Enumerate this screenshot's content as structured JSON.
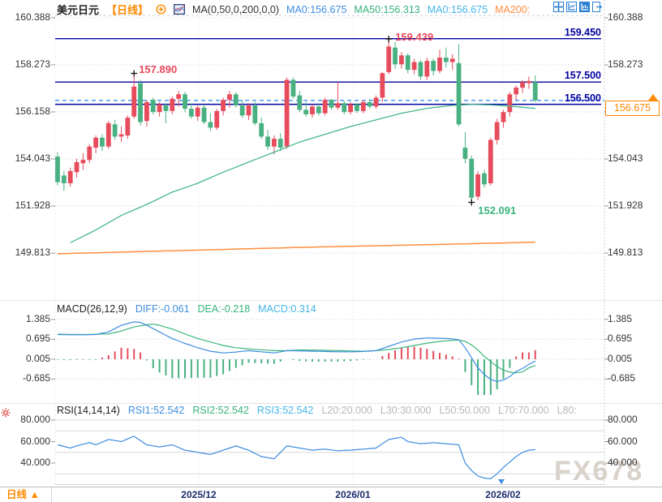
{
  "header": {
    "symbol": "美元日元",
    "period": "【日线】",
    "ma_formula": "MA(0,50,0,200,0,0)",
    "ma0_a": "MA0:156.675",
    "ma50": "MA50:156.313",
    "ma0_b": "MA0:156.675",
    "ma200": "MA200:"
  },
  "toolbar": {
    "icons": [
      "pan-crosshair",
      "axis-scale",
      "axis-style",
      "export-window"
    ]
  },
  "price_panel": {
    "left_axis": [
      "160.388",
      "158.273",
      "156.158",
      "154.043",
      "151.928",
      "149.813"
    ],
    "right_axis": [
      "160.388",
      "158.273",
      "154.043",
      "151.928",
      "149.813"
    ],
    "hline_labels": [
      "159.450",
      "157.500",
      "156.500"
    ],
    "current_price": "156.675",
    "ann_high": "159.439",
    "ann_first_high": "157.890",
    "ann_low": "152.091"
  },
  "macd_panel": {
    "title": "MACD(26,12,9)",
    "diff_label": "DIFF:-0.061",
    "dea_label": "DEA:-0.218",
    "macd_label": "MACD:0.314",
    "axis": [
      "1.385",
      "0.695",
      "0.005",
      "-0.685"
    ]
  },
  "rsi_panel": {
    "title": "RSI(14,14,14)",
    "rsi1_label": "RSI1:52.542",
    "rsi2_label": "RSI2:52.542",
    "rsi3_label": "RSI3:52.542",
    "levels": [
      "L20:20.000",
      "L30:30.000",
      "L50:50.000",
      "L70:70.000",
      "L80:"
    ],
    "axis": [
      "80.000",
      "60.000",
      "40.000"
    ]
  },
  "bottom": {
    "period": "日线 ▲",
    "dates": [
      "2025/12",
      "2026/01",
      "2026/02"
    ]
  },
  "watermark": "FX678",
  "colors": {
    "up": "#e64c5c",
    "down": "#49b181",
    "navy_line": "#0000a0",
    "dashed_current": "#3b96f2",
    "ma50": "#45b78c",
    "ma200": "#ff8e3e",
    "diff": "#3d8de0",
    "dea": "#3cb57c",
    "accent_orange": "#ff8800",
    "grid": "#d9dde8"
  },
  "chart_data": {
    "type": "candlestick",
    "title": "美元日元 日线 (USD/JPY daily)",
    "x_dates": [
      "2025/12",
      "2026/01",
      "2026/02"
    ],
    "price_axis_ticks": [
      160.388,
      158.273,
      156.158,
      154.043,
      151.928,
      149.813
    ],
    "hlines": [
      159.45,
      157.5,
      156.5
    ],
    "current_price": 156.675,
    "annotations": {
      "high": {
        "index": 52,
        "price": 159.439
      },
      "first_high": {
        "index": 12,
        "price": 157.89
      },
      "low": {
        "index": 65,
        "price": 152.091
      }
    },
    "candles": [
      [
        154.15,
        154.35,
        152.85,
        153.0
      ],
      [
        153.3,
        153.5,
        152.6,
        152.95
      ],
      [
        152.95,
        153.65,
        152.8,
        153.5
      ],
      [
        153.45,
        154.05,
        153.2,
        153.9
      ],
      [
        153.85,
        154.3,
        153.55,
        154.0
      ],
      [
        154.0,
        154.7,
        153.85,
        154.6
      ],
      [
        154.55,
        155.1,
        154.3,
        155.0
      ],
      [
        155.0,
        155.15,
        154.4,
        154.6
      ],
      [
        154.6,
        155.75,
        154.5,
        155.65
      ],
      [
        155.6,
        155.8,
        154.9,
        155.05
      ],
      [
        155.05,
        155.5,
        154.8,
        155.15
      ],
      [
        155.1,
        156.0,
        154.95,
        155.9
      ],
      [
        155.95,
        157.89,
        155.85,
        157.3
      ],
      [
        157.45,
        157.6,
        155.55,
        155.7
      ],
      [
        155.75,
        156.7,
        155.5,
        156.6
      ],
      [
        156.7,
        156.8,
        156.05,
        156.15
      ],
      [
        156.15,
        156.6,
        155.95,
        156.5
      ],
      [
        156.45,
        156.55,
        155.65,
        156.2
      ],
      [
        156.2,
        156.85,
        156.05,
        156.75
      ],
      [
        156.75,
        157.1,
        156.4,
        156.95
      ],
      [
        156.95,
        157.05,
        156.15,
        156.3
      ],
      [
        156.3,
        156.55,
        155.85,
        155.95
      ],
      [
        155.95,
        156.45,
        155.75,
        156.35
      ],
      [
        156.35,
        156.5,
        155.6,
        155.7
      ],
      [
        155.7,
        156.1,
        155.3,
        155.45
      ],
      [
        155.45,
        156.3,
        155.35,
        156.2
      ],
      [
        156.2,
        156.8,
        156.0,
        156.7
      ],
      [
        156.7,
        157.1,
        156.35,
        156.95
      ],
      [
        156.95,
        157.05,
        156.35,
        156.45
      ],
      [
        156.45,
        156.7,
        155.9,
        156.0
      ],
      [
        156.0,
        156.55,
        155.8,
        156.45
      ],
      [
        156.45,
        156.6,
        155.55,
        155.65
      ],
      [
        155.65,
        155.9,
        154.95,
        155.05
      ],
      [
        155.05,
        155.35,
        154.45,
        154.6
      ],
      [
        154.6,
        155.1,
        154.25,
        154.95
      ],
      [
        154.95,
        155.2,
        154.4,
        154.55
      ],
      [
        154.6,
        157.7,
        154.5,
        157.6
      ],
      [
        157.6,
        157.7,
        156.75,
        156.85
      ],
      [
        156.9,
        157.1,
        156.15,
        156.25
      ],
      [
        156.25,
        156.6,
        155.95,
        156.05
      ],
      [
        156.05,
        156.5,
        155.9,
        156.4
      ],
      [
        156.4,
        156.55,
        156.0,
        156.1
      ],
      [
        156.1,
        156.8,
        156.0,
        156.7
      ],
      [
        156.7,
        156.75,
        156.25,
        156.35
      ],
      [
        156.35,
        157.5,
        156.25,
        156.55
      ],
      [
        156.55,
        156.65,
        156.05,
        156.15
      ],
      [
        156.15,
        156.6,
        156.05,
        156.5
      ],
      [
        156.5,
        156.55,
        156.1,
        156.2
      ],
      [
        156.2,
        156.7,
        156.1,
        156.6
      ],
      [
        156.6,
        156.75,
        156.3,
        156.4
      ],
      [
        156.4,
        156.9,
        156.3,
        156.8
      ],
      [
        156.8,
        157.95,
        156.6,
        157.9
      ],
      [
        157.95,
        159.439,
        157.85,
        159.1
      ],
      [
        159.05,
        159.3,
        158.1,
        158.3
      ],
      [
        158.3,
        158.85,
        158.1,
        158.7
      ],
      [
        158.7,
        158.8,
        157.9,
        158.05
      ],
      [
        158.05,
        158.55,
        157.85,
        158.4
      ],
      [
        158.4,
        158.5,
        157.6,
        157.75
      ],
      [
        157.75,
        158.6,
        157.6,
        158.45
      ],
      [
        158.45,
        158.55,
        157.8,
        158.0
      ],
      [
        158.0,
        158.95,
        157.9,
        158.6
      ],
      [
        158.6,
        159.05,
        158.15,
        158.4
      ],
      [
        158.4,
        158.75,
        158.05,
        158.55
      ],
      [
        158.35,
        159.2,
        155.5,
        155.6
      ],
      [
        154.55,
        155.25,
        153.85,
        154.05
      ],
      [
        154.05,
        154.2,
        152.091,
        152.3
      ],
      [
        152.35,
        153.5,
        152.2,
        153.35
      ],
      [
        153.4,
        153.55,
        152.75,
        152.9
      ],
      [
        152.95,
        155.0,
        152.85,
        154.9
      ],
      [
        154.9,
        155.85,
        154.7,
        155.7
      ],
      [
        155.7,
        156.25,
        155.45,
        156.15
      ],
      [
        156.15,
        157.05,
        155.95,
        156.95
      ],
      [
        156.95,
        157.35,
        156.7,
        157.25
      ],
      [
        157.25,
        157.6,
        157.0,
        157.5
      ],
      [
        157.45,
        157.75,
        157.2,
        157.55
      ],
      [
        157.5,
        157.8,
        156.6,
        156.675
      ]
    ],
    "ma50_points": [
      [
        2,
        150.28
      ],
      [
        6,
        150.85
      ],
      [
        10,
        151.5
      ],
      [
        14,
        152.0
      ],
      [
        18,
        152.55
      ],
      [
        22,
        152.95
      ],
      [
        26,
        153.45
      ],
      [
        30,
        153.9
      ],
      [
        34,
        154.35
      ],
      [
        38,
        154.8
      ],
      [
        42,
        155.15
      ],
      [
        46,
        155.5
      ],
      [
        50,
        155.8
      ],
      [
        54,
        156.1
      ],
      [
        58,
        156.32
      ],
      [
        62,
        156.45
      ],
      [
        65,
        156.5
      ],
      [
        68,
        156.47
      ],
      [
        71,
        156.42
      ],
      [
        75,
        156.313
      ]
    ],
    "ma200_points": [
      [
        0,
        149.78
      ],
      [
        20,
        149.93
      ],
      [
        40,
        150.08
      ],
      [
        60,
        150.2
      ],
      [
        75,
        150.3
      ]
    ],
    "macd": {
      "params": [
        26,
        12,
        9
      ],
      "diff_end": -0.061,
      "dea_end": -0.218,
      "macd_end": 0.314,
      "hist_formula": "2*(diff-dea)",
      "axis_ticks": [
        1.385,
        0.695,
        0.005,
        -0.685
      ],
      "diff_points": [
        [
          0,
          0.86
        ],
        [
          2,
          0.85
        ],
        [
          4,
          0.85
        ],
        [
          6,
          0.86
        ],
        [
          8,
          0.95
        ],
        [
          10,
          1.18
        ],
        [
          12,
          1.3
        ],
        [
          13,
          1.28
        ],
        [
          14,
          1.18
        ],
        [
          16,
          0.95
        ],
        [
          18,
          0.72
        ],
        [
          20,
          0.55
        ],
        [
          22,
          0.4
        ],
        [
          24,
          0.28
        ],
        [
          26,
          0.22
        ],
        [
          28,
          0.25
        ],
        [
          30,
          0.3
        ],
        [
          32,
          0.26
        ],
        [
          34,
          0.22
        ],
        [
          36,
          0.3
        ],
        [
          38,
          0.29
        ],
        [
          40,
          0.28
        ],
        [
          42,
          0.27
        ],
        [
          44,
          0.26
        ],
        [
          46,
          0.26
        ],
        [
          48,
          0.27
        ],
        [
          50,
          0.3
        ],
        [
          52,
          0.45
        ],
        [
          54,
          0.6
        ],
        [
          56,
          0.7
        ],
        [
          58,
          0.74
        ],
        [
          60,
          0.73
        ],
        [
          62,
          0.71
        ],
        [
          63,
          0.68
        ],
        [
          64,
          0.4
        ],
        [
          65,
          0.05
        ],
        [
          66,
          -0.3
        ],
        [
          67,
          -0.52
        ],
        [
          68,
          -0.7
        ],
        [
          69,
          -0.77
        ],
        [
          70,
          -0.72
        ],
        [
          71,
          -0.6
        ],
        [
          72,
          -0.42
        ],
        [
          73,
          -0.32
        ],
        [
          74,
          -0.18
        ],
        [
          75,
          -0.061
        ]
      ],
      "dea_points": [
        [
          0,
          0.87
        ],
        [
          4,
          0.86
        ],
        [
          8,
          0.88
        ],
        [
          10,
          0.98
        ],
        [
          12,
          1.12
        ],
        [
          14,
          1.2
        ],
        [
          15,
          1.22
        ],
        [
          16,
          1.18
        ],
        [
          18,
          1.05
        ],
        [
          20,
          0.88
        ],
        [
          22,
          0.72
        ],
        [
          24,
          0.6
        ],
        [
          26,
          0.48
        ],
        [
          28,
          0.4
        ],
        [
          30,
          0.36
        ],
        [
          32,
          0.33
        ],
        [
          34,
          0.3
        ],
        [
          36,
          0.3
        ],
        [
          38,
          0.32
        ],
        [
          40,
          0.32
        ],
        [
          42,
          0.31
        ],
        [
          44,
          0.3
        ],
        [
          46,
          0.29
        ],
        [
          48,
          0.28
        ],
        [
          50,
          0.3
        ],
        [
          52,
          0.34
        ],
        [
          54,
          0.4
        ],
        [
          56,
          0.48
        ],
        [
          58,
          0.56
        ],
        [
          60,
          0.62
        ],
        [
          62,
          0.66
        ],
        [
          63,
          0.67
        ],
        [
          64,
          0.62
        ],
        [
          65,
          0.5
        ],
        [
          66,
          0.32
        ],
        [
          67,
          0.1
        ],
        [
          68,
          -0.08
        ],
        [
          69,
          -0.25
        ],
        [
          70,
          -0.38
        ],
        [
          71,
          -0.45
        ],
        [
          72,
          -0.47
        ],
        [
          73,
          -0.44
        ],
        [
          74,
          -0.3
        ],
        [
          75,
          -0.218
        ]
      ]
    },
    "rsi": {
      "params": [
        14,
        14,
        14
      ],
      "end_value": 52.542,
      "levels": [
        20,
        30,
        50,
        70,
        80
      ],
      "axis_ticks": [
        80,
        60,
        40
      ],
      "points": [
        [
          0,
          57
        ],
        [
          2,
          54
        ],
        [
          3,
          56
        ],
        [
          5,
          59
        ],
        [
          6,
          57
        ],
        [
          8,
          62
        ],
        [
          10,
          60
        ],
        [
          12,
          65
        ],
        [
          14,
          57
        ],
        [
          16,
          55
        ],
        [
          18,
          57
        ],
        [
          20,
          52
        ],
        [
          22,
          50
        ],
        [
          24,
          48
        ],
        [
          26,
          52
        ],
        [
          28,
          56
        ],
        [
          30,
          52
        ],
        [
          32,
          46
        ],
        [
          34,
          44
        ],
        [
          36,
          56
        ],
        [
          38,
          54
        ],
        [
          40,
          52
        ],
        [
          42,
          53
        ],
        [
          44,
          51.5
        ],
        [
          46,
          52
        ],
        [
          48,
          53
        ],
        [
          50,
          54
        ],
        [
          52,
          62
        ],
        [
          54,
          64
        ],
        [
          55,
          60
        ],
        [
          57,
          58
        ],
        [
          59,
          59
        ],
        [
          61,
          58
        ],
        [
          63,
          57
        ],
        [
          64,
          40
        ],
        [
          65,
          33
        ],
        [
          66,
          28
        ],
        [
          67,
          26
        ],
        [
          68,
          25.5
        ],
        [
          69,
          30
        ],
        [
          70,
          36
        ],
        [
          71,
          41
        ],
        [
          72,
          46
        ],
        [
          73,
          50
        ],
        [
          74,
          52
        ],
        [
          75,
          52.542
        ]
      ]
    }
  }
}
